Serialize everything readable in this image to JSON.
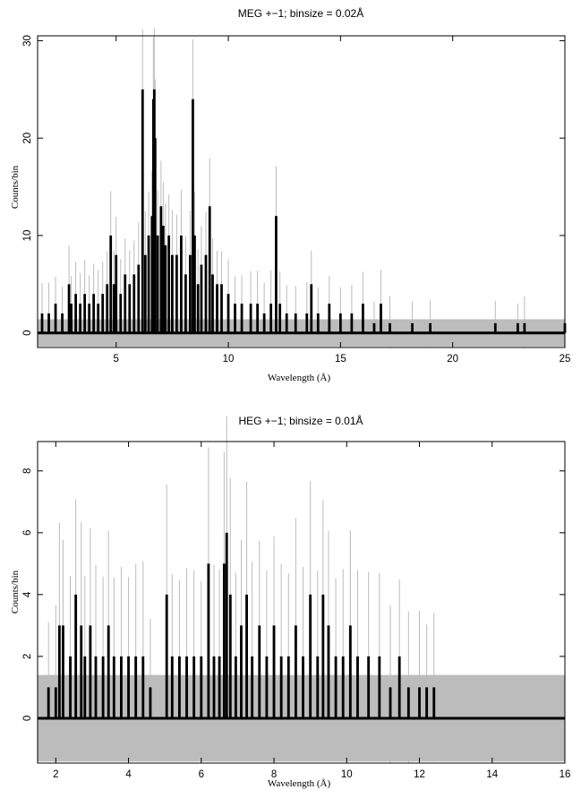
{
  "chart_data": [
    {
      "type": "line",
      "title": "MEG +−1; binsize = 0.02Å",
      "xlabel": "Wavelength (Å)",
      "ylabel": "Counts/bin",
      "xlim": [
        1.5,
        25
      ],
      "ylim": [
        -1.5,
        30.5
      ],
      "xticks": [
        5,
        10,
        15,
        20,
        25
      ],
      "yticks": [
        0,
        10,
        20,
        30
      ],
      "grid": false,
      "legend": "none",
      "colors": {
        "counts": "#000000",
        "errors": "#bcbcbc"
      },
      "error_band": {
        "x_range": [
          1.5,
          25
        ],
        "low": -1.4,
        "high": 1.4
      },
      "series": [
        {
          "role": "counts",
          "x": [
            1.7,
            2.0,
            2.3,
            2.6,
            2.9,
            3.0,
            3.2,
            3.4,
            3.6,
            3.8,
            4.0,
            4.2,
            4.4,
            4.6,
            4.76,
            4.9,
            5.0,
            5.2,
            5.4,
            5.6,
            5.8,
            6.0,
            6.18,
            6.3,
            6.45,
            6.6,
            6.66,
            6.7,
            6.74,
            6.85,
            7.0,
            7.1,
            7.2,
            7.35,
            7.5,
            7.7,
            7.9,
            8.1,
            8.3,
            8.42,
            8.5,
            8.65,
            8.8,
            9.0,
            9.17,
            9.3,
            9.5,
            9.7,
            10.0,
            10.3,
            10.6,
            11.0,
            11.3,
            11.6,
            11.9,
            12.13,
            12.3,
            12.6,
            13.0,
            13.5,
            13.7,
            14.0,
            14.5,
            15.0,
            15.5,
            16.0,
            16.5,
            16.8,
            17.2,
            18.2,
            19.0,
            21.9,
            22.9,
            23.2,
            25.0
          ],
          "y": [
            2,
            2,
            3,
            2,
            5,
            3,
            4,
            3,
            4,
            3,
            4,
            3,
            4,
            5,
            10,
            5,
            8,
            4,
            6,
            5,
            6,
            7,
            25,
            8,
            10,
            12,
            24,
            25,
            20,
            10,
            13,
            11,
            9,
            10,
            8,
            8,
            10,
            6,
            8,
            24,
            10,
            5,
            7,
            8,
            13,
            6,
            5,
            5,
            4,
            3,
            3,
            3,
            3,
            2,
            3,
            12,
            3,
            2,
            2,
            2,
            5,
            2,
            3,
            2,
            2,
            3,
            1,
            3,
            1,
            1,
            1,
            1,
            1,
            1,
            1
          ]
        }
      ]
    },
    {
      "type": "line",
      "title": "HEG +−1; binsize = 0.01Å",
      "xlabel": "Wavelength (Å)",
      "ylabel": "Counts/bin",
      "xlim": [
        1.5,
        16
      ],
      "ylim": [
        -1.45,
        8.95
      ],
      "xticks": [
        2,
        4,
        6,
        8,
        10,
        12,
        14,
        16
      ],
      "yticks": [
        0,
        2,
        4,
        6,
        8
      ],
      "grid": false,
      "legend": "none",
      "colors": {
        "counts": "#000000",
        "errors": "#bcbcbc"
      },
      "error_band": {
        "x_range": [
          1.5,
          16
        ],
        "low": -1.4,
        "high": 1.4
      },
      "series": [
        {
          "role": "counts",
          "x": [
            1.8,
            2.0,
            2.1,
            2.2,
            2.4,
            2.55,
            2.7,
            2.8,
            2.95,
            3.1,
            3.3,
            3.45,
            3.6,
            3.8,
            4.0,
            4.2,
            4.4,
            4.6,
            5.05,
            5.2,
            5.4,
            5.6,
            5.8,
            6.0,
            6.2,
            6.35,
            6.5,
            6.63,
            6.7,
            6.8,
            6.95,
            7.1,
            7.25,
            7.4,
            7.6,
            7.8,
            8.0,
            8.2,
            8.4,
            8.6,
            8.8,
            9.0,
            9.2,
            9.35,
            9.5,
            9.7,
            9.9,
            10.1,
            10.3,
            10.6,
            10.9,
            11.2,
            11.45,
            11.7,
            12.0,
            12.2,
            12.4
          ],
          "y": [
            1,
            1,
            3,
            3,
            2,
            4,
            3,
            2,
            3,
            2,
            2,
            3,
            2,
            2,
            2,
            2,
            2,
            1,
            4,
            2,
            2,
            2,
            2,
            2,
            5,
            2,
            2,
            5,
            6,
            4,
            2,
            3,
            4,
            2,
            3,
            2,
            3,
            2,
            2,
            3,
            2,
            4,
            2,
            4,
            3,
            2,
            2,
            3,
            2,
            2,
            2,
            1,
            2,
            1,
            1,
            1,
            1
          ]
        }
      ]
    }
  ]
}
